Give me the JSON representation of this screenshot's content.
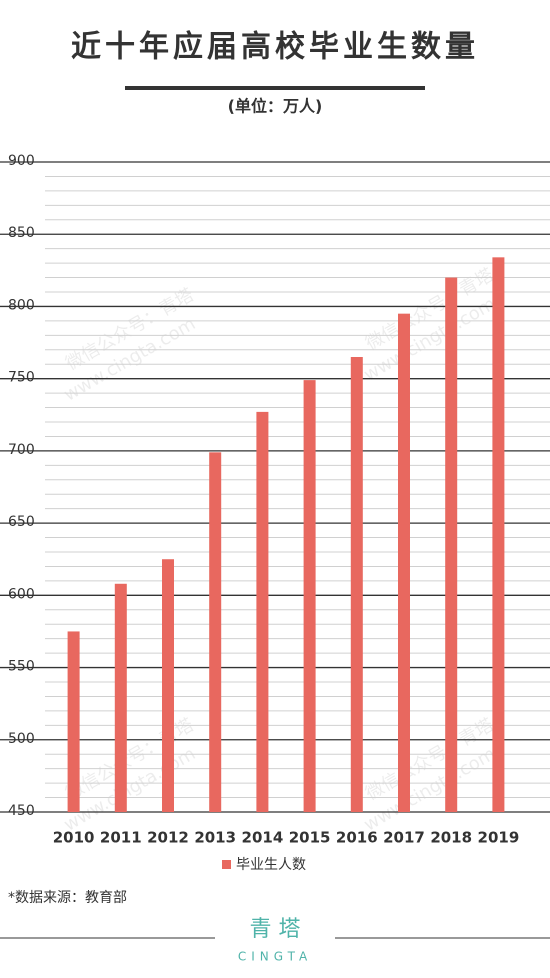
{
  "chart_data": {
    "type": "bar",
    "title": "近十年应届高校毕业生数量",
    "subtitle": "(单位：万人)",
    "categories": [
      "2010",
      "2011",
      "2012",
      "2013",
      "2014",
      "2015",
      "2016",
      "2017",
      "2018",
      "2019"
    ],
    "series": [
      {
        "name": "毕业生人数",
        "color": "#e8685f",
        "values": [
          575,
          608,
          625,
          699,
          727,
          749,
          765,
          795,
          820,
          834
        ]
      }
    ],
    "ylim": [
      450,
      900
    ],
    "yticks": [
      450,
      500,
      550,
      600,
      650,
      700,
      750,
      800,
      850,
      900
    ],
    "minor_yticks": [
      460,
      470,
      480,
      490,
      510,
      520,
      530,
      540,
      560,
      570,
      580,
      590,
      610,
      620,
      630,
      640,
      660,
      670,
      680,
      690,
      710,
      720,
      730,
      740,
      760,
      770,
      780,
      790,
      810,
      820,
      830,
      840,
      860,
      870,
      880,
      890
    ],
    "grid": true,
    "legend": "bottom",
    "source": "*数据来源：教育部",
    "watermark": [
      "微信公众号：青塔",
      "www.cingta.com"
    ],
    "logo": {
      "name": "青 塔",
      "subname": "CINGTA"
    }
  }
}
